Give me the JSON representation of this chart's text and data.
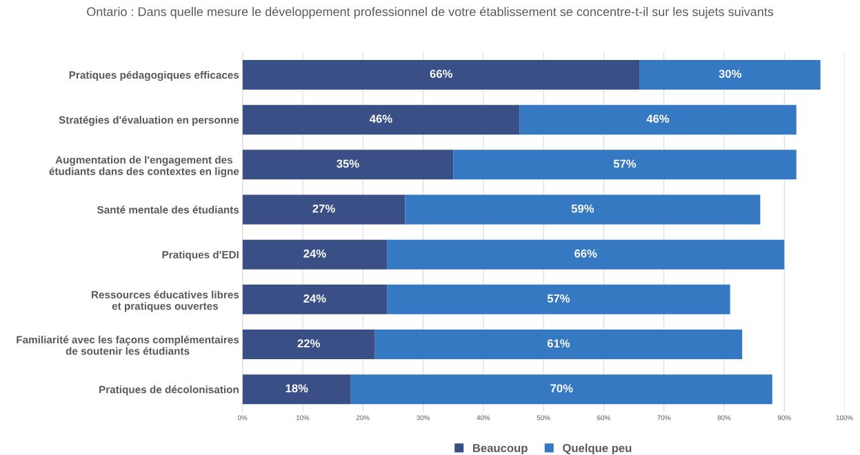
{
  "chart_data": {
    "type": "bar",
    "orientation": "horizontal",
    "stacked": true,
    "title": "Ontario : Dans quelle mesure le développement professionnel de votre établissement se concentre-t-il sur les sujets suivants",
    "categories": [
      "Pratiques pédagogiques efficaces",
      "Stratégies d'évaluation en personne",
      "Augmentation de l'engagement des\nétudiants dans des contextes en ligne",
      "Santé mentale des étudiants",
      "Pratiques d'EDI",
      "Ressources éducatives libres\net pratiques ouvertes",
      "Familiarité avec les façons complémentaires\nde soutenir les étudiants",
      "Pratiques de décolonisation"
    ],
    "series": [
      {
        "name": "Beaucoup",
        "color": "#3a4f86",
        "values": [
          66,
          46,
          35,
          27,
          24,
          24,
          22,
          18
        ],
        "value_labels": [
          "66%",
          "46%",
          "35%",
          "27%",
          "24%",
          "24%",
          "22%",
          "18%"
        ]
      },
      {
        "name": "Quelque peu",
        "color": "#3479c1",
        "values": [
          30,
          46,
          57,
          59,
          66,
          57,
          61,
          70
        ],
        "value_labels": [
          "30%",
          "46%",
          "57%",
          "59%",
          "66%",
          "57%",
          "61%",
          "70%"
        ]
      }
    ],
    "xlim": [
      0,
      100
    ],
    "xticks": [
      {
        "value": 0,
        "label": "0%"
      },
      {
        "value": 10,
        "label": "10%"
      },
      {
        "value": 20,
        "label": "20%"
      },
      {
        "value": 30,
        "label": "30%"
      },
      {
        "value": 40,
        "label": "40%"
      },
      {
        "value": 50,
        "label": "50%"
      },
      {
        "value": 60,
        "label": "60%"
      },
      {
        "value": 70,
        "label": "70%"
      },
      {
        "value": 80,
        "label": "80%"
      },
      {
        "value": 90,
        "label": "90%"
      },
      {
        "value": 100,
        "label": "100%"
      }
    ],
    "grid": "x",
    "legend": "bottom"
  }
}
